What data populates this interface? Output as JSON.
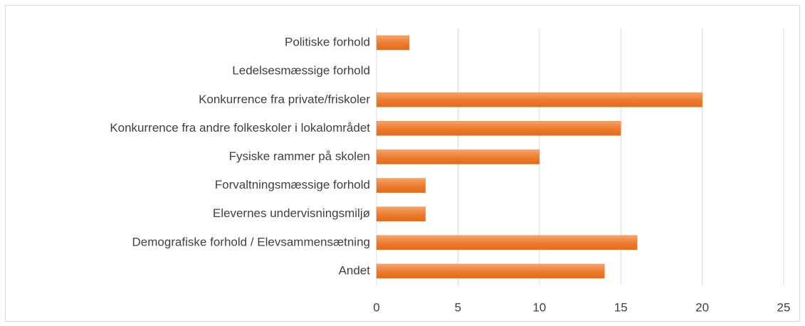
{
  "chart_data": {
    "type": "barh",
    "categories": [
      "Politiske forhold",
      "Ledelsesmæssige forhold",
      "Konkurrence fra private/friskoler",
      "Konkurrence fra andre folkeskoler i lokalområdet",
      "Fysiske rammer på skolen",
      "Forvaltningsmæssige forhold",
      "Elevernes undervisningsmiljø",
      "Demografiske forhold / Elevsammensætning",
      "Andet"
    ],
    "values": [
      2,
      0,
      20,
      15,
      10,
      3,
      3,
      16,
      14
    ],
    "color": "#ed7d31",
    "xlim": [
      0,
      25
    ],
    "xticks": [
      0,
      5,
      10,
      15,
      20,
      25
    ],
    "grid": true
  }
}
